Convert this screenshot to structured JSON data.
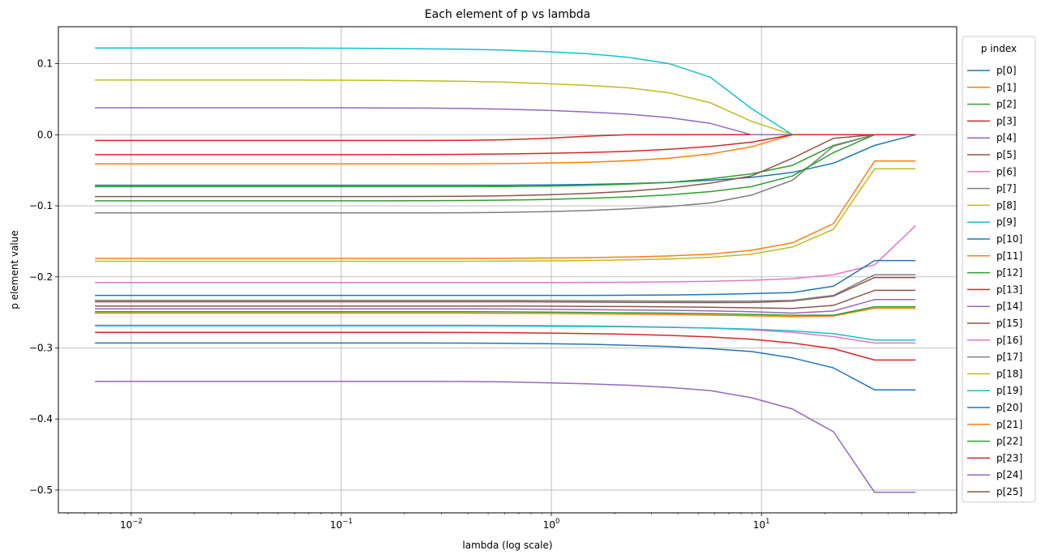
{
  "chart_data": {
    "type": "line",
    "title": "Each element of p vs lambda",
    "xlabel": "lambda (log scale)",
    "ylabel": "p element value",
    "xscale": "log",
    "xlim": [
      0.0045,
      85
    ],
    "ylim": [
      -0.532,
      0.152
    ],
    "grid": true,
    "legend": {
      "title": "p index",
      "placement": "right-outside"
    },
    "x_ticks": [
      {
        "value": 0.01,
        "base": "10",
        "exp": "−2"
      },
      {
        "value": 0.1,
        "base": "10",
        "exp": "−1"
      },
      {
        "value": 1,
        "base": "10",
        "exp": "0"
      },
      {
        "value": 10,
        "base": "10",
        "exp": "1"
      }
    ],
    "y_ticks": [
      {
        "value": 0.1,
        "label": "0.1"
      },
      {
        "value": 0.0,
        "label": "0.0"
      },
      {
        "value": -0.1,
        "label": "−0.1"
      },
      {
        "value": -0.2,
        "label": "−0.2"
      },
      {
        "value": -0.3,
        "label": "−0.3"
      },
      {
        "value": -0.4,
        "label": "−0.4"
      },
      {
        "value": -0.5,
        "label": "−0.5"
      }
    ],
    "x": [
      0.00672,
      0.01054,
      0.01652,
      0.0259,
      0.04061,
      0.06367,
      0.09983,
      0.1565,
      0.2454,
      0.3848,
      0.6033,
      0.9459,
      1.483,
      2.325,
      3.646,
      5.716,
      8.962,
      14.05,
      22.03,
      34.54,
      54.16
    ],
    "series": [
      {
        "name": "p[0]",
        "color": "#1f77b4",
        "values": [
          -0.071,
          -0.071,
          -0.071,
          -0.071,
          -0.071,
          -0.071,
          -0.071,
          -0.071,
          -0.071,
          -0.071,
          -0.071,
          -0.0705,
          -0.0698,
          -0.0687,
          -0.067,
          -0.064,
          -0.06,
          -0.053,
          -0.04,
          -0.015,
          0.0
        ]
      },
      {
        "name": "p[1]",
        "color": "#ff7f0e",
        "values": [
          -0.041,
          -0.041,
          -0.041,
          -0.041,
          -0.041,
          -0.041,
          -0.041,
          -0.041,
          -0.041,
          -0.041,
          -0.0405,
          -0.0398,
          -0.0387,
          -0.0365,
          -0.033,
          -0.027,
          -0.017,
          0.0,
          0.0,
          0.0,
          0.0
        ]
      },
      {
        "name": "p[2]",
        "color": "#2ca02c",
        "values": [
          -0.073,
          -0.073,
          -0.073,
          -0.073,
          -0.073,
          -0.073,
          -0.073,
          -0.073,
          -0.073,
          -0.073,
          -0.0728,
          -0.0722,
          -0.0712,
          -0.0695,
          -0.067,
          -0.062,
          -0.055,
          -0.043,
          -0.015,
          0.0,
          0.0
        ]
      },
      {
        "name": "p[3]",
        "color": "#d62728",
        "values": [
          -0.008,
          -0.008,
          -0.008,
          -0.008,
          -0.008,
          -0.008,
          -0.008,
          -0.008,
          -0.008,
          -0.0078,
          -0.007,
          -0.005,
          -0.002,
          0.0,
          0.0,
          0.0,
          0.0,
          0.0,
          0.0,
          0.0,
          0.0
        ]
      },
      {
        "name": "p[4]",
        "color": "#9467bd",
        "values": [
          0.038,
          0.038,
          0.038,
          0.038,
          0.038,
          0.038,
          0.038,
          0.0378,
          0.0375,
          0.037,
          0.036,
          0.0345,
          0.032,
          0.029,
          0.024,
          0.016,
          0.0,
          0.0,
          0.0,
          0.0,
          0.0
        ]
      },
      {
        "name": "p[5]",
        "color": "#8c564b",
        "values": [
          -0.087,
          -0.087,
          -0.087,
          -0.087,
          -0.087,
          -0.087,
          -0.087,
          -0.087,
          -0.0868,
          -0.0865,
          -0.0858,
          -0.0845,
          -0.0825,
          -0.0795,
          -0.075,
          -0.068,
          -0.058,
          -0.033,
          -0.005,
          0.0,
          0.0
        ]
      },
      {
        "name": "p[6]",
        "color": "#e377c2",
        "values": [
          -0.208,
          -0.208,
          -0.208,
          -0.208,
          -0.208,
          -0.208,
          -0.208,
          -0.208,
          -0.208,
          -0.208,
          -0.208,
          -0.208,
          -0.2078,
          -0.2075,
          -0.207,
          -0.2062,
          -0.2048,
          -0.2025,
          -0.197,
          -0.183,
          -0.128
        ]
      },
      {
        "name": "p[7]",
        "color": "#7f7f7f",
        "values": [
          -0.11,
          -0.11,
          -0.11,
          -0.11,
          -0.11,
          -0.11,
          -0.11,
          -0.11,
          -0.11,
          -0.1098,
          -0.1092,
          -0.1082,
          -0.1067,
          -0.1043,
          -0.101,
          -0.096,
          -0.085,
          -0.064,
          -0.016,
          0.0,
          0.0
        ]
      },
      {
        "name": "p[8]",
        "color": "#bcbd22",
        "values": [
          0.077,
          0.077,
          0.077,
          0.077,
          0.077,
          0.077,
          0.0768,
          0.0765,
          0.076,
          0.0752,
          0.074,
          0.072,
          0.0695,
          0.066,
          0.059,
          0.045,
          0.019,
          0.0,
          0.0,
          0.0,
          0.0
        ]
      },
      {
        "name": "p[9]",
        "color": "#17becf",
        "values": [
          0.122,
          0.122,
          0.122,
          0.122,
          0.122,
          0.122,
          0.1218,
          0.1215,
          0.121,
          0.1203,
          0.119,
          0.117,
          0.114,
          0.109,
          0.1,
          0.081,
          0.037,
          0.0,
          0.0,
          0.0,
          0.0
        ]
      },
      {
        "name": "p[10]",
        "color": "#1f77b4",
        "values": [
          -0.226,
          -0.226,
          -0.226,
          -0.226,
          -0.226,
          -0.226,
          -0.226,
          -0.226,
          -0.226,
          -0.226,
          -0.226,
          -0.226,
          -0.226,
          -0.2258,
          -0.2255,
          -0.2248,
          -0.2235,
          -0.222,
          -0.213,
          -0.177,
          -0.177
        ]
      },
      {
        "name": "p[11]",
        "color": "#ff7f0e",
        "values": [
          -0.174,
          -0.174,
          -0.174,
          -0.174,
          -0.174,
          -0.174,
          -0.174,
          -0.174,
          -0.174,
          -0.174,
          -0.1738,
          -0.1735,
          -0.173,
          -0.172,
          -0.1705,
          -0.168,
          -0.1625,
          -0.152,
          -0.125,
          -0.037,
          -0.037
        ]
      },
      {
        "name": "p[12]",
        "color": "#2ca02c",
        "values": [
          -0.093,
          -0.093,
          -0.093,
          -0.093,
          -0.093,
          -0.093,
          -0.093,
          -0.093,
          -0.0928,
          -0.0925,
          -0.092,
          -0.091,
          -0.0895,
          -0.0875,
          -0.0845,
          -0.08,
          -0.073,
          -0.058,
          -0.025,
          0.0,
          0.0
        ]
      },
      {
        "name": "p[13]",
        "color": "#d62728",
        "values": [
          -0.028,
          -0.028,
          -0.028,
          -0.028,
          -0.028,
          -0.028,
          -0.028,
          -0.028,
          -0.0278,
          -0.0275,
          -0.027,
          -0.0262,
          -0.025,
          -0.0232,
          -0.0205,
          -0.0165,
          -0.0105,
          0.0,
          0.0,
          0.0,
          0.0
        ]
      },
      {
        "name": "p[14]",
        "color": "#9467bd",
        "values": [
          -0.245,
          -0.245,
          -0.245,
          -0.245,
          -0.245,
          -0.245,
          -0.245,
          -0.245,
          -0.245,
          -0.245,
          -0.2452,
          -0.2455,
          -0.246,
          -0.2465,
          -0.247,
          -0.2478,
          -0.249,
          -0.251,
          -0.248,
          -0.232,
          -0.232
        ]
      },
      {
        "name": "p[15]",
        "color": "#8c564b",
        "values": [
          -0.235,
          -0.235,
          -0.235,
          -0.235,
          -0.235,
          -0.235,
          -0.235,
          -0.235,
          -0.235,
          -0.235,
          -0.235,
          -0.2352,
          -0.2355,
          -0.2358,
          -0.236,
          -0.2362,
          -0.236,
          -0.234,
          -0.227,
          -0.201,
          -0.201
        ]
      },
      {
        "name": "p[16]",
        "color": "#e377c2",
        "values": [
          -0.268,
          -0.268,
          -0.268,
          -0.268,
          -0.268,
          -0.268,
          -0.268,
          -0.268,
          -0.268,
          -0.268,
          -0.2682,
          -0.2685,
          -0.269,
          -0.2697,
          -0.2707,
          -0.2722,
          -0.2745,
          -0.278,
          -0.284,
          -0.293,
          -0.293
        ]
      },
      {
        "name": "p[17]",
        "color": "#7f7f7f",
        "values": [
          -0.233,
          -0.233,
          -0.233,
          -0.233,
          -0.233,
          -0.233,
          -0.233,
          -0.233,
          -0.233,
          -0.233,
          -0.233,
          -0.2332,
          -0.2335,
          -0.2338,
          -0.234,
          -0.2342,
          -0.234,
          -0.233,
          -0.226,
          -0.197,
          -0.197
        ]
      },
      {
        "name": "p[18]",
        "color": "#bcbd22",
        "values": [
          -0.178,
          -0.178,
          -0.178,
          -0.178,
          -0.178,
          -0.178,
          -0.178,
          -0.178,
          -0.178,
          -0.178,
          -0.1778,
          -0.1775,
          -0.177,
          -0.176,
          -0.1748,
          -0.1725,
          -0.168,
          -0.158,
          -0.133,
          -0.048,
          -0.048
        ]
      },
      {
        "name": "p[19]",
        "color": "#17becf",
        "values": [
          -0.269,
          -0.269,
          -0.269,
          -0.269,
          -0.269,
          -0.269,
          -0.269,
          -0.269,
          -0.269,
          -0.269,
          -0.2692,
          -0.2695,
          -0.2698,
          -0.2703,
          -0.271,
          -0.272,
          -0.2735,
          -0.276,
          -0.28,
          -0.289,
          -0.289
        ]
      },
      {
        "name": "p[20]",
        "color": "#1f77b4",
        "values": [
          -0.293,
          -0.293,
          -0.293,
          -0.293,
          -0.293,
          -0.293,
          -0.293,
          -0.293,
          -0.293,
          -0.2932,
          -0.2935,
          -0.294,
          -0.2948,
          -0.2962,
          -0.298,
          -0.301,
          -0.305,
          -0.314,
          -0.328,
          -0.359,
          -0.359
        ]
      },
      {
        "name": "p[21]",
        "color": "#ff7f0e",
        "values": [
          -0.251,
          -0.251,
          -0.251,
          -0.251,
          -0.251,
          -0.251,
          -0.251,
          -0.251,
          -0.251,
          -0.251,
          -0.2512,
          -0.2515,
          -0.252,
          -0.2525,
          -0.253,
          -0.2538,
          -0.2548,
          -0.256,
          -0.255,
          -0.244,
          -0.244
        ]
      },
      {
        "name": "p[22]",
        "color": "#2ca02c",
        "values": [
          -0.249,
          -0.249,
          -0.249,
          -0.249,
          -0.249,
          -0.249,
          -0.249,
          -0.249,
          -0.249,
          -0.249,
          -0.2492,
          -0.2495,
          -0.25,
          -0.2505,
          -0.251,
          -0.2518,
          -0.2528,
          -0.254,
          -0.254,
          -0.242,
          -0.242
        ]
      },
      {
        "name": "p[23]",
        "color": "#d62728",
        "values": [
          -0.278,
          -0.278,
          -0.278,
          -0.278,
          -0.278,
          -0.278,
          -0.278,
          -0.278,
          -0.278,
          -0.2782,
          -0.2785,
          -0.279,
          -0.2797,
          -0.2808,
          -0.2823,
          -0.2845,
          -0.2878,
          -0.293,
          -0.301,
          -0.317,
          -0.317
        ]
      },
      {
        "name": "p[24]",
        "color": "#9467bd",
        "values": [
          -0.347,
          -0.347,
          -0.347,
          -0.347,
          -0.347,
          -0.347,
          -0.347,
          -0.347,
          -0.347,
          -0.3472,
          -0.3478,
          -0.349,
          -0.3505,
          -0.3525,
          -0.3555,
          -0.36,
          -0.37,
          -0.386,
          -0.418,
          -0.503,
          -0.503
        ]
      },
      {
        "name": "p[25]",
        "color": "#8c564b",
        "values": [
          -0.241,
          -0.241,
          -0.241,
          -0.241,
          -0.241,
          -0.241,
          -0.241,
          -0.241,
          -0.241,
          -0.241,
          -0.241,
          -0.2412,
          -0.2415,
          -0.2418,
          -0.2422,
          -0.2428,
          -0.2435,
          -0.2445,
          -0.24,
          -0.219,
          -0.219
        ]
      }
    ]
  }
}
